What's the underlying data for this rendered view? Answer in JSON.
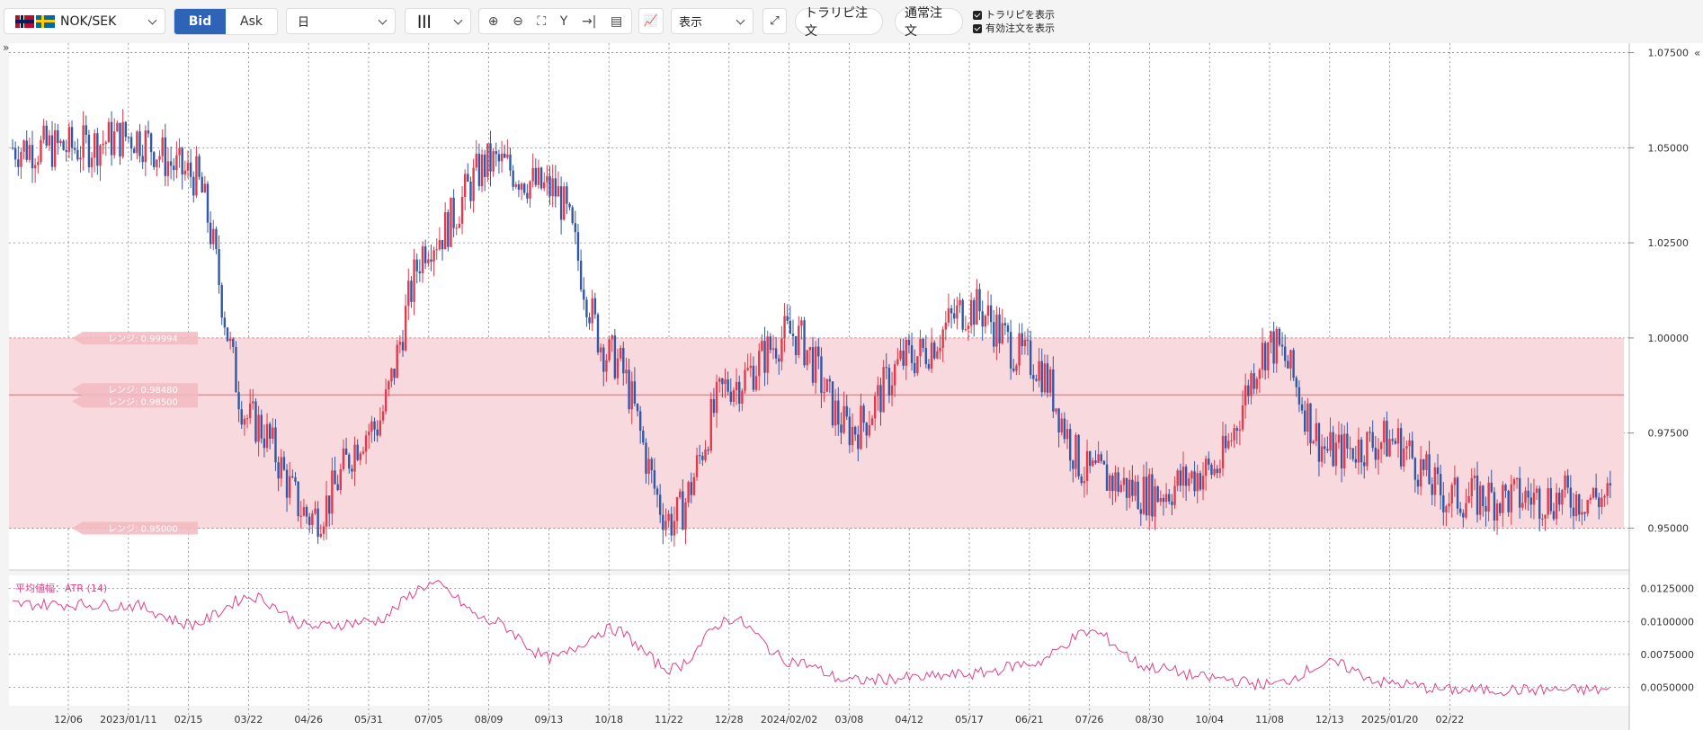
{
  "toolbar": {
    "pair": "NOK/SEK",
    "bid_label": "Bid",
    "ask_label": "Ask",
    "period": "日",
    "display_label": "表示",
    "trarip_order": "トラリピ注文",
    "normal_order": "通常注文",
    "show_trarip": "トラリピを表示",
    "show_orders": "有効注文を表示"
  },
  "colors": {
    "up": "#e03a4c",
    "down": "#3357a8",
    "range_fill": "#f8d9dd",
    "range_line": "#e58a93",
    "atr": "#e0408c",
    "accent": "#2e63b8"
  },
  "chart_data": [
    {
      "type": "candlestick",
      "x_tick_labels": [
        "12/06",
        "2023/01/11",
        "02/15",
        "03/22",
        "04/26",
        "05/31",
        "07/05",
        "08/09",
        "09/13",
        "10/18",
        "11/22",
        "12/28",
        "2024/02/02",
        "03/08",
        "04/12",
        "05/17",
        "06/21",
        "07/26",
        "08/30",
        "10/04",
        "11/08",
        "12/13",
        "2025/01/20",
        "02/22"
      ],
      "y_tick_labels": [
        "1.07500",
        "1.05000",
        "1.02500",
        "1.00000",
        "0.97500",
        "0.95000"
      ],
      "ylim": [
        0.939,
        1.0775
      ],
      "range_band": [
        0.95,
        1.0
      ],
      "range_labels": [
        {
          "label": "レンジ: 0.99994",
          "value": 0.99994
        },
        {
          "label": "レンジ: 0.98480",
          "value": 0.9848
        },
        {
          "label": "レンジ: 0.98500",
          "value": 0.985
        },
        {
          "label": "レンジ: 0.95000",
          "value": 0.95
        }
      ],
      "close_by_tick": [
        1.05,
        1.053,
        1.043,
        0.978,
        0.953,
        0.976,
        1.026,
        1.046,
        1.039,
        0.995,
        0.952,
        0.988,
        1.001,
        0.976,
        0.995,
        1.008,
        0.994,
        0.964,
        0.959,
        0.965,
        0.998,
        0.97,
        0.973,
        0.958
      ]
    },
    {
      "type": "line",
      "title": "平均値幅：ATR (14)",
      "y_tick_labels": [
        "0.0125000",
        "0.0100000",
        "0.0075000",
        "0.0050000"
      ],
      "ylim": [
        0.0036,
        0.0135
      ],
      "values_by_tick": [
        0.0113,
        0.0112,
        0.0098,
        0.0119,
        0.0096,
        0.01,
        0.0128,
        0.01,
        0.0072,
        0.0094,
        0.0064,
        0.0102,
        0.007,
        0.0055,
        0.0057,
        0.006,
        0.0068,
        0.0092,
        0.0065,
        0.0057,
        0.0052,
        0.0068,
        0.0053,
        0.0048
      ]
    }
  ]
}
